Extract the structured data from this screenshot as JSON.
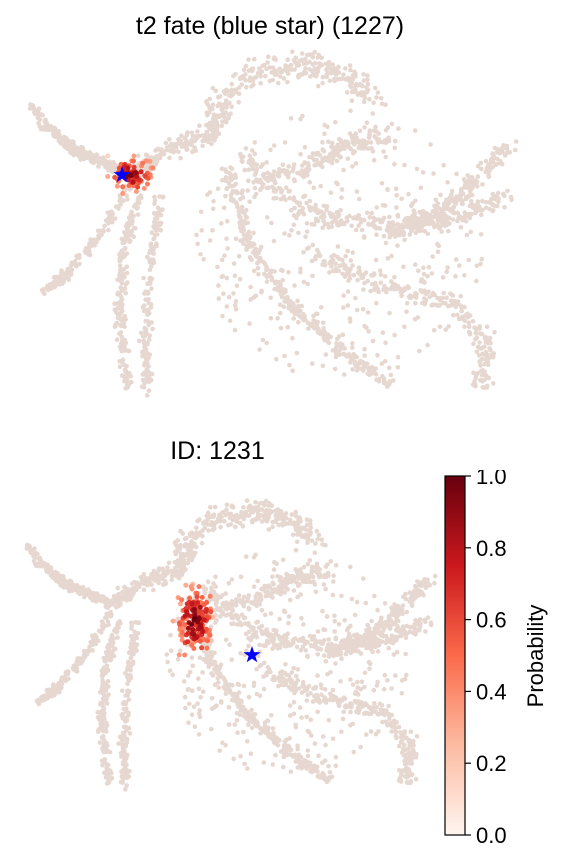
{
  "panels": [
    {
      "title": "t2 fate (blue star) (1227)",
      "star": "blue-star-icon"
    },
    {
      "title": "ID: 1231",
      "star": "blue-star-icon"
    }
  ],
  "colorbar": {
    "label": "Probability",
    "ticks": [
      "0.0",
      "0.2",
      "0.4",
      "0.6",
      "0.8",
      "1.0"
    ],
    "range": [
      0.0,
      1.0
    ],
    "colors": [
      "#fff5f0",
      "#fcbba1",
      "#fb6a4a",
      "#cb181d",
      "#67000d"
    ]
  },
  "colors": {
    "background_cells": "#e6d8d0",
    "star": "#0000ff"
  },
  "chart_data": [
    {
      "type": "scatter",
      "title": "t2 fate (blue star) (1227)",
      "xlabel": "",
      "ylabel": "",
      "grid": false,
      "color_scale": "Reds",
      "color_range": [
        0.0,
        1.0
      ]
    },
    {
      "type": "scatter",
      "title": "ID: 1231",
      "xlabel": "",
      "ylabel": "",
      "grid": false,
      "color_scale": "Reds",
      "color_range": [
        0.0,
        1.0
      ],
      "colorbar_label": "Probability",
      "colorbar_ticks": [
        0.0,
        0.2,
        0.4,
        0.6,
        0.8,
        1.0
      ]
    }
  ]
}
